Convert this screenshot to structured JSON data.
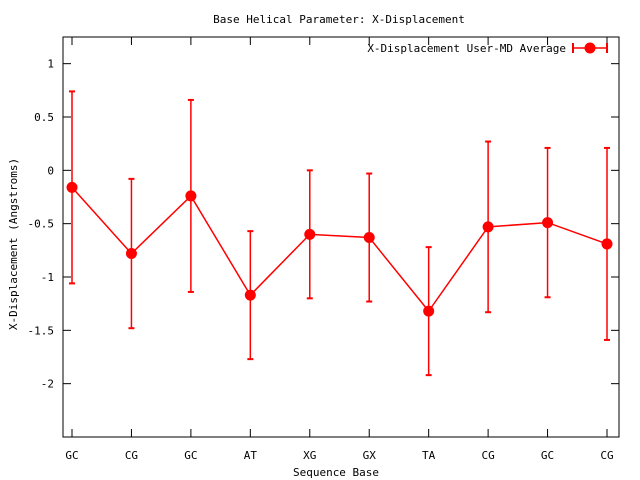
{
  "chart_data": {
    "type": "line",
    "title": "Base  Helical Parameter: X-Displacement",
    "xlabel": "Sequence Base",
    "ylabel": "X-Displacement (Angstroms)",
    "categories": [
      "GC",
      "CG",
      "GC",
      "AT",
      "XG",
      "GX",
      "TA",
      "CG",
      "GC",
      "CG"
    ],
    "ylim": [
      -2.5,
      1.25
    ],
    "yticks": [
      {
        "value": 1,
        "label": "1"
      },
      {
        "value": 0.5,
        "label": "0.5"
      },
      {
        "value": 0,
        "label": "0"
      },
      {
        "value": -0.5,
        "label": "-0.5"
      },
      {
        "value": -1,
        "label": "-1"
      },
      {
        "value": -1.5,
        "label": "-1.5"
      },
      {
        "value": -2,
        "label": "-2"
      }
    ],
    "grid": false,
    "legend_position": "top-right",
    "series": [
      {
        "name": "X-Displacement User-MD Average",
        "color": "#ff0000",
        "values": [
          -0.16,
          -0.78,
          -0.24,
          -1.17,
          -0.6,
          -0.63,
          -1.32,
          -0.53,
          -0.49,
          -0.69
        ],
        "errors": [
          0.9,
          0.7,
          0.9,
          0.6,
          0.6,
          0.6,
          0.6,
          0.8,
          0.7,
          0.9
        ]
      }
    ]
  }
}
